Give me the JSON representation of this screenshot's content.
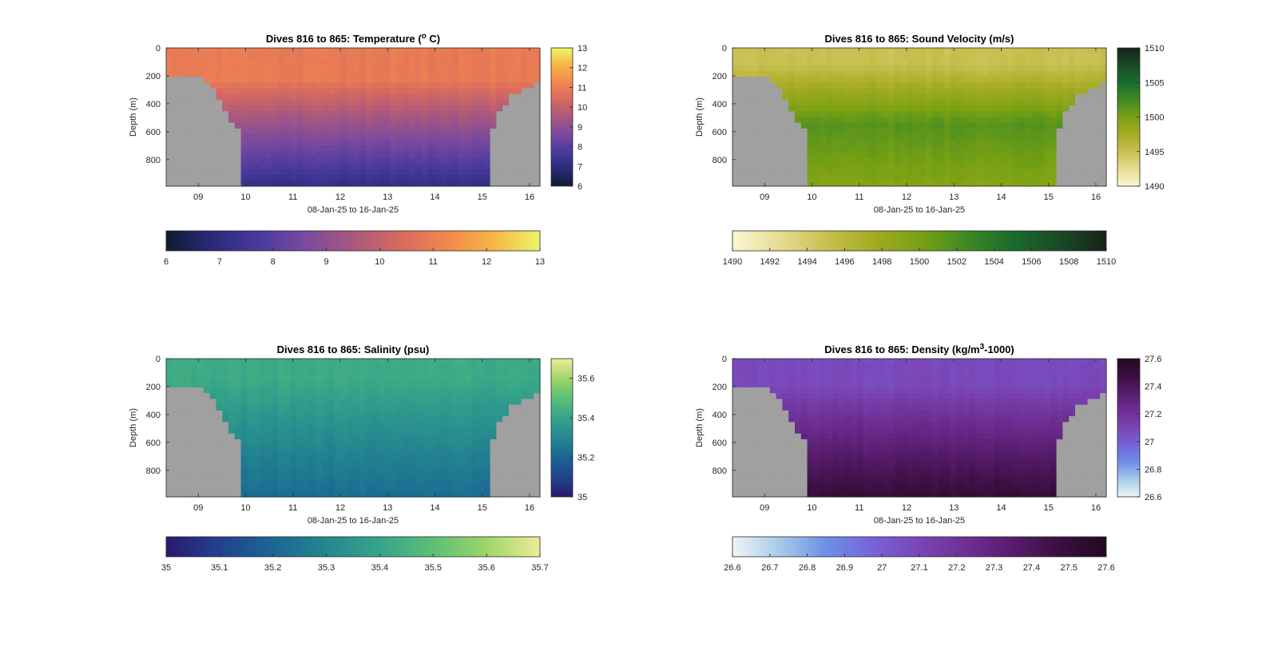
{
  "figure": {
    "background": "#ffffff"
  },
  "chart_data": [
    {
      "type": "heatmap",
      "title_main": "Dives 816 to 865: Temperature (",
      "title_sup": "o",
      "title_tail": " C)",
      "xlabel": "08-Jan-25 to 16-Jan-25",
      "ylabel": "Depth (m)",
      "xticks": [
        "09",
        "10",
        "11",
        "12",
        "13",
        "14",
        "15",
        "16"
      ],
      "xtick_values": [
        9,
        10,
        11,
        12,
        13,
        14,
        15,
        16
      ],
      "xlim": [
        8.32,
        16.22
      ],
      "ylim": [
        0,
        990
      ],
      "yticks": [
        0,
        200,
        400,
        600,
        800
      ],
      "right_colorbar": {
        "ticks": [
          "6",
          "7",
          "8",
          "9",
          "10",
          "11",
          "12",
          "13"
        ],
        "values": [
          6,
          7,
          8,
          9,
          10,
          11,
          12,
          13
        ]
      },
      "bottom_colorbar": {
        "ticks": [
          "6",
          "7",
          "8",
          "9",
          "10",
          "11",
          "12",
          "13"
        ],
        "values": [
          6,
          7,
          8,
          9,
          10,
          11,
          12,
          13
        ]
      },
      "clim": [
        6,
        13
      ],
      "colormap": [
        "#0e1c2e",
        "#2a2a7a",
        "#4a3a9e",
        "#7a4a9e",
        "#a9587f",
        "#d7695f",
        "#f3874f",
        "#f6b543",
        "#eef56b"
      ],
      "field": {
        "surface": 10.9,
        "deep": 7.2,
        "surface_depth": 230,
        "deep_depth": 980
      },
      "land_color": "#a0a0a0"
    },
    {
      "type": "heatmap",
      "title_main": "Dives 816 to 865: Sound Velocity (m/s)",
      "title_sup": "",
      "title_tail": "",
      "xlabel": "08-Jan-25 to 16-Jan-25",
      "ylabel": "Depth (m)",
      "xticks": [
        "09",
        "10",
        "11",
        "12",
        "13",
        "14",
        "15",
        "16"
      ],
      "xtick_values": [
        9,
        10,
        11,
        12,
        13,
        14,
        15,
        16
      ],
      "xlim": [
        8.32,
        16.22
      ],
      "ylim": [
        0,
        990
      ],
      "yticks": [
        0,
        200,
        400,
        600,
        800
      ],
      "right_colorbar": {
        "ticks": [
          "1490",
          "1495",
          "1500",
          "1505",
          "1510"
        ],
        "values": [
          1490,
          1495,
          1500,
          1505,
          1510
        ]
      },
      "bottom_colorbar": {
        "ticks": [
          "1490",
          "1492",
          "1494",
          "1496",
          "1498",
          "1500",
          "1502",
          "1504",
          "1506",
          "1508",
          "1510"
        ],
        "values": [
          1490,
          1492,
          1494,
          1496,
          1498,
          1500,
          1502,
          1504,
          1506,
          1508,
          1510
        ]
      },
      "clim": [
        1490,
        1510
      ],
      "colormap": [
        "#fbf6d3",
        "#e6dc93",
        "#c8c050",
        "#a4ab22",
        "#79a114",
        "#3f8a23",
        "#196c2d",
        "#1a4a26",
        "#162318"
      ],
      "field": {
        "surface": 1495.0,
        "deep": 1499.3,
        "mid": 1501.5,
        "surface_depth": 120,
        "deep_depth": 980
      },
      "land_color": "#a0a0a0"
    },
    {
      "type": "heatmap",
      "title_main": "Dives 816 to 865: Salinity (psu)",
      "title_sup": "",
      "title_tail": "",
      "xlabel": "08-Jan-25 to 16-Jan-25",
      "ylabel": "Depth (m)",
      "xticks": [
        "09",
        "10",
        "11",
        "12",
        "13",
        "14",
        "15",
        "16"
      ],
      "xtick_values": [
        9,
        10,
        11,
        12,
        13,
        14,
        15,
        16
      ],
      "xlim": [
        8.32,
        16.22
      ],
      "ylim": [
        0,
        990
      ],
      "yticks": [
        0,
        200,
        400,
        600,
        800
      ],
      "right_colorbar": {
        "ticks": [
          "35",
          "35.2",
          "35.4",
          "35.6"
        ],
        "values": [
          35,
          35.2,
          35.4,
          35.6
        ]
      },
      "bottom_colorbar": {
        "ticks": [
          "35",
          "35.1",
          "35.2",
          "35.3",
          "35.4",
          "35.5",
          "35.6",
          "35.7"
        ],
        "values": [
          35,
          35.1,
          35.2,
          35.3,
          35.4,
          35.5,
          35.6,
          35.7
        ]
      },
      "clim": [
        35,
        35.7
      ],
      "colormap": [
        "#2a1a6e",
        "#21428f",
        "#1b6693",
        "#24878f",
        "#36a58a",
        "#5cbf76",
        "#9ed56a",
        "#eeeb9a"
      ],
      "field": {
        "surface": 35.42,
        "deep": 35.22,
        "surface_depth": 150,
        "deep_depth": 980
      },
      "land_color": "#a0a0a0"
    },
    {
      "type": "heatmap",
      "title_main": "Dives 816 to 865: Density (kg/m",
      "title_sup": "3",
      "title_tail": "-1000)",
      "xlabel": "08-Jan-25 to 16-Jan-25",
      "ylabel": "Depth (m)",
      "xticks": [
        "09",
        "10",
        "11",
        "12",
        "13",
        "14",
        "15",
        "16"
      ],
      "xtick_values": [
        9,
        10,
        11,
        12,
        13,
        14,
        15,
        16
      ],
      "xlim": [
        8.32,
        16.22
      ],
      "ylim": [
        0,
        990
      ],
      "yticks": [
        0,
        200,
        400,
        600,
        800
      ],
      "right_colorbar": {
        "ticks": [
          "26.6",
          "26.8",
          "27",
          "27.2",
          "27.4",
          "27.6"
        ],
        "values": [
          26.6,
          26.8,
          27,
          27.2,
          27.4,
          27.6
        ]
      },
      "bottom_colorbar": {
        "ticks": [
          "26.6",
          "26.7",
          "26.8",
          "26.9",
          "27",
          "27.1",
          "27.2",
          "27.3",
          "27.4",
          "27.5",
          "27.6"
        ],
        "values": [
          26.6,
          26.7,
          26.8,
          26.9,
          27,
          27.1,
          27.2,
          27.3,
          27.4,
          27.5,
          27.6
        ]
      },
      "clim": [
        26.6,
        27.6
      ],
      "colormap": [
        "#eef6f6",
        "#a7cbe8",
        "#6e8fe6",
        "#7564d8",
        "#7a45b6",
        "#6e2f94",
        "#571c6d",
        "#3a0f3f",
        "#22081f"
      ],
      "field": {
        "surface": 27.08,
        "deep": 27.5,
        "surface_depth": 200,
        "deep_depth": 980
      },
      "land_color": "#a0a0a0"
    }
  ]
}
